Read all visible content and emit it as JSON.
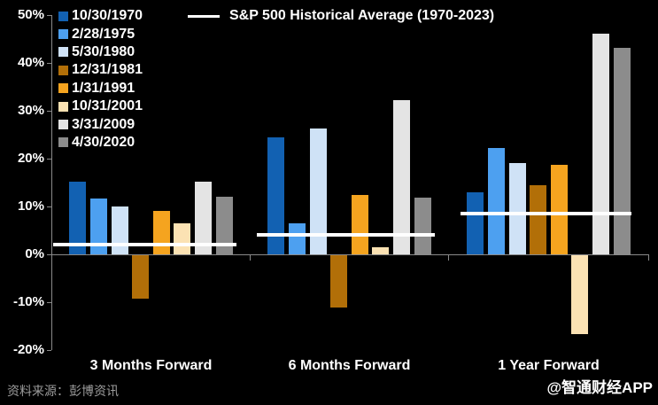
{
  "footer": {
    "source": "资料来源：彭博资讯",
    "watermark": "@智通财经APP"
  },
  "chart_data": {
    "type": "bar",
    "title": "",
    "xlabel": "",
    "ylabel": "",
    "background": "#000000",
    "grid": false,
    "legend_position": "top-left",
    "ylim": [
      -20,
      50
    ],
    "y_ticks": [
      {
        "label": "50%",
        "value": 50
      },
      {
        "label": "40%",
        "value": 40
      },
      {
        "label": "30%",
        "value": 30
      },
      {
        "label": "20%",
        "value": 20
      },
      {
        "label": "10%",
        "value": 10
      },
      {
        "label": "0%",
        "value": 0
      },
      {
        "label": "-10%",
        "value": -10
      },
      {
        "label": "-20%",
        "value": -20
      }
    ],
    "categories": [
      "3 Months Forward",
      "6 Months Forward",
      "1 Year Forward"
    ],
    "series": [
      {
        "name": "10/30/1970",
        "color": "#1261b2",
        "values": [
          15.1,
          24.5,
          13.0
        ]
      },
      {
        "name": "2/28/1975",
        "color": "#4da0f0",
        "values": [
          11.7,
          6.5,
          22.3
        ]
      },
      {
        "name": "5/30/1980",
        "color": "#cfe2f6",
        "values": [
          10.0,
          26.3,
          19.1
        ]
      },
      {
        "name": "12/31/1981",
        "color": "#b26f08",
        "values": [
          -9.0,
          -11.0,
          14.5
        ]
      },
      {
        "name": "1/31/1991",
        "color": "#f5a41f",
        "values": [
          9.1,
          12.5,
          18.7
        ]
      },
      {
        "name": "10/31/2001",
        "color": "#fbe2b3",
        "values": [
          6.5,
          1.4,
          -16.5
        ]
      },
      {
        "name": "3/31/2009",
        "color": "#e4e4e4",
        "values": [
          15.2,
          32.3,
          46.2
        ]
      },
      {
        "name": "4/30/2020",
        "color": "#8c8c8c",
        "values": [
          12.1,
          11.9,
          43.2
        ]
      }
    ],
    "average_line": {
      "label": "S&P 500 Historical Average (1970-2023)",
      "color": "#ffffff",
      "values": [
        2.0,
        4.0,
        8.6
      ]
    }
  }
}
